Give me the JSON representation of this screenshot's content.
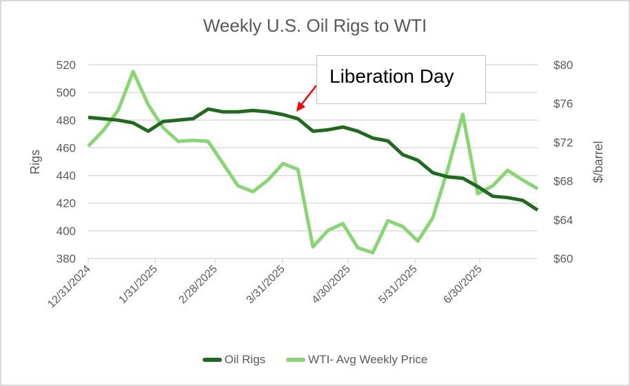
{
  "chart": {
    "title": "Weekly U.S. Oil Rigs to WTI",
    "y_left_label": "Rigs",
    "y_right_label": "$/barrel",
    "y_left_ticks": [
      "520",
      "500",
      "480",
      "460",
      "440",
      "420",
      "400",
      "380"
    ],
    "y_right_ticks": [
      "$80",
      "$76",
      "$72",
      "$68",
      "$64",
      "$60"
    ],
    "x_ticks": [
      "12/31/2024",
      "1/31/2025",
      "2/28/2025",
      "3/31/2025",
      "4/30/2025",
      "5/31/2025",
      "6/30/2025"
    ],
    "annotation": "Liberation Day",
    "legend": [
      {
        "label": "Oil Rigs",
        "color": "#1e6b1e"
      },
      {
        "label": "WTI- Avg Weekly Price",
        "color": "#86d672"
      }
    ],
    "colors": {
      "rigs": "#1e6b1e",
      "wti": "#86d672",
      "arrow": "#ff0000",
      "grid": "#d9d9d9"
    }
  },
  "chart_data": {
    "type": "line",
    "title": "Weekly U.S. Oil Rigs to WTI",
    "xlabel": "",
    "ylabel": "Rigs",
    "y2label": "$/barrel",
    "ylim": [
      380,
      520
    ],
    "y2lim": [
      60,
      80
    ],
    "x_tick_labels": [
      "12/31/2024",
      "1/31/2025",
      "2/28/2025",
      "3/31/2025",
      "4/30/2025",
      "5/31/2025",
      "6/30/2025"
    ],
    "grid": true,
    "legend_position": "bottom",
    "annotations": [
      {
        "text": "Liberation Day",
        "points_to": "~4/2/2025"
      }
    ],
    "series": [
      {
        "name": "Oil Rigs",
        "axis": "left",
        "values": [
          482,
          481,
          480,
          478,
          472,
          479,
          480,
          481,
          488,
          486,
          486,
          487,
          486,
          484,
          481,
          472,
          473,
          475,
          472,
          467,
          465,
          455,
          451,
          442,
          439,
          438,
          432,
          425,
          424,
          422,
          415
        ]
      },
      {
        "name": "WTI- Avg Weekly Price",
        "axis": "right",
        "values": [
          71.6,
          73.2,
          75.3,
          79.3,
          75.9,
          73.5,
          72.1,
          72.2,
          72.1,
          69.8,
          67.5,
          66.9,
          68.1,
          69.8,
          69.2,
          61.2,
          62.9,
          63.6,
          61.1,
          60.6,
          63.9,
          63.3,
          61.8,
          64.2,
          69.2,
          74.9,
          66.7,
          67.5,
          69.1,
          68.1,
          67.2
        ]
      }
    ]
  }
}
